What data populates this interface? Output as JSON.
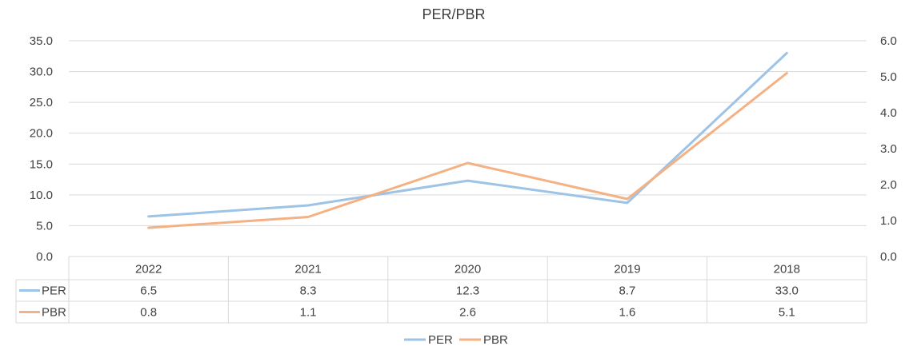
{
  "chart_data": {
    "type": "line",
    "title": "PER/PBR",
    "categories": [
      "2022",
      "2021",
      "2020",
      "2019",
      "2018"
    ],
    "series": [
      {
        "name": "PER",
        "values": [
          6.5,
          8.3,
          12.3,
          8.7,
          33.0
        ],
        "color": "#9DC3E6",
        "axis": "left",
        "display": [
          "6.5",
          "8.3",
          "12.3",
          "8.7",
          "33.0"
        ]
      },
      {
        "name": "PBR",
        "values": [
          0.8,
          1.1,
          2.6,
          1.6,
          5.1
        ],
        "color": "#F4B183",
        "axis": "right",
        "display": [
          "0.8",
          "1.1",
          "2.6",
          "1.6",
          "5.1"
        ]
      }
    ],
    "y_left": {
      "min": 0,
      "max": 35,
      "ticks": [
        "0.0",
        "5.0",
        "10.0",
        "15.0",
        "20.0",
        "25.0",
        "30.0",
        "35.0"
      ]
    },
    "y_right": {
      "min": 0,
      "max": 6,
      "ticks": [
        "0.0",
        "1.0",
        "2.0",
        "3.0",
        "4.0",
        "5.0",
        "6.0"
      ]
    },
    "grid": true,
    "data_table": true,
    "legend_position": "bottom"
  }
}
